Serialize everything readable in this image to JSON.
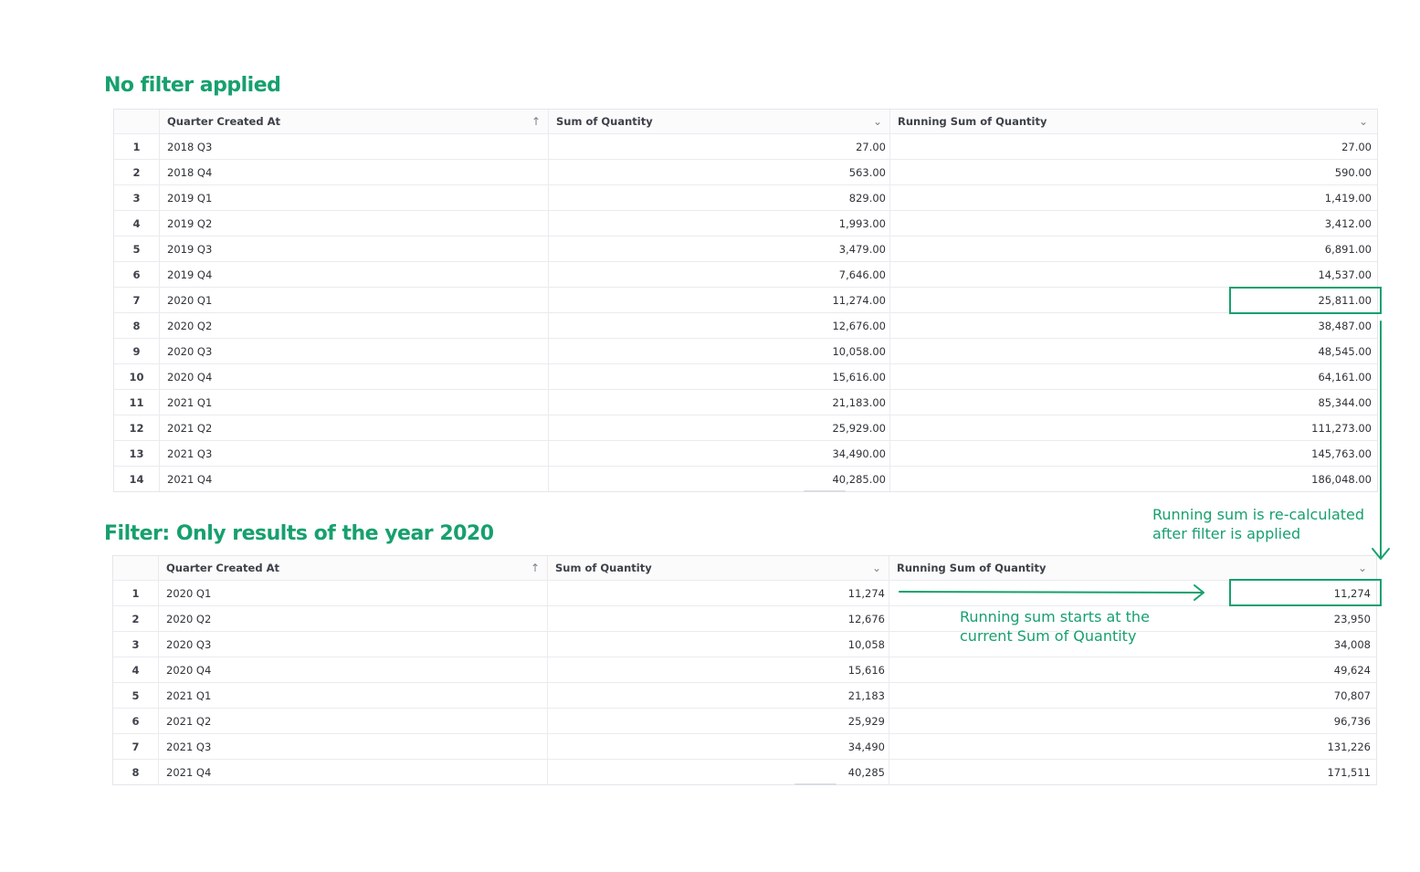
{
  "table1": {
    "title": "No filter applied",
    "columns": {
      "quarter": "Quarter Created At",
      "sum": "Sum of Quantity",
      "running": "Running Sum of Quantity"
    },
    "rows": [
      {
        "idx": "1",
        "quarter": "2018 Q3",
        "sum": "27.00",
        "running": "27.00"
      },
      {
        "idx": "2",
        "quarter": "2018 Q4",
        "sum": "563.00",
        "running": "590.00"
      },
      {
        "idx": "3",
        "quarter": "2019 Q1",
        "sum": "829.00",
        "running": "1,419.00"
      },
      {
        "idx": "4",
        "quarter": "2019 Q2",
        "sum": "1,993.00",
        "running": "3,412.00"
      },
      {
        "idx": "5",
        "quarter": "2019 Q3",
        "sum": "3,479.00",
        "running": "6,891.00"
      },
      {
        "idx": "6",
        "quarter": "2019 Q4",
        "sum": "7,646.00",
        "running": "14,537.00"
      },
      {
        "idx": "7",
        "quarter": "2020 Q1",
        "sum": "11,274.00",
        "running": "25,811.00"
      },
      {
        "idx": "8",
        "quarter": "2020 Q2",
        "sum": "12,676.00",
        "running": "38,487.00"
      },
      {
        "idx": "9",
        "quarter": "2020 Q3",
        "sum": "10,058.00",
        "running": "48,545.00"
      },
      {
        "idx": "10",
        "quarter": "2020 Q4",
        "sum": "15,616.00",
        "running": "64,161.00"
      },
      {
        "idx": "11",
        "quarter": "2021 Q1",
        "sum": "21,183.00",
        "running": "85,344.00"
      },
      {
        "idx": "12",
        "quarter": "2021 Q2",
        "sum": "25,929.00",
        "running": "111,273.00"
      },
      {
        "idx": "13",
        "quarter": "2021 Q3",
        "sum": "34,490.00",
        "running": "145,763.00"
      },
      {
        "idx": "14",
        "quarter": "2021 Q4",
        "sum": "40,285.00",
        "running": "186,048.00"
      }
    ]
  },
  "table2": {
    "title": "Filter: Only results of the year 2020",
    "columns": {
      "quarter": "Quarter Created At",
      "sum": "Sum of Quantity",
      "running": "Running Sum of Quantity"
    },
    "rows": [
      {
        "idx": "1",
        "quarter": "2020 Q1",
        "sum": "11,274",
        "running": "11,274"
      },
      {
        "idx": "2",
        "quarter": "2020 Q2",
        "sum": "12,676",
        "running": "23,950"
      },
      {
        "idx": "3",
        "quarter": "2020 Q3",
        "sum": "10,058",
        "running": "34,008"
      },
      {
        "idx": "4",
        "quarter": "2020 Q4",
        "sum": "15,616",
        "running": "49,624"
      },
      {
        "idx": "5",
        "quarter": "2021 Q1",
        "sum": "21,183",
        "running": "70,807"
      },
      {
        "idx": "6",
        "quarter": "2021 Q2",
        "sum": "25,929",
        "running": "96,736"
      },
      {
        "idx": "7",
        "quarter": "2021 Q3",
        "sum": "34,490",
        "running": "131,226"
      },
      {
        "idx": "8",
        "quarter": "2021 Q4",
        "sum": "40,285",
        "running": "171,511"
      }
    ]
  },
  "annotations": {
    "recalc": [
      "Running sum is re-calculated",
      "after filter is applied"
    ],
    "starts": [
      "Running sum starts at the",
      "current Sum of Quantity"
    ]
  },
  "icons": {
    "sort_asc": "sort-ascending-icon",
    "dropdown": "chevron-down-icon"
  },
  "colors": {
    "accent": "#17a06e",
    "grid_border": "#e4e6ea",
    "text": "#2f3237"
  }
}
